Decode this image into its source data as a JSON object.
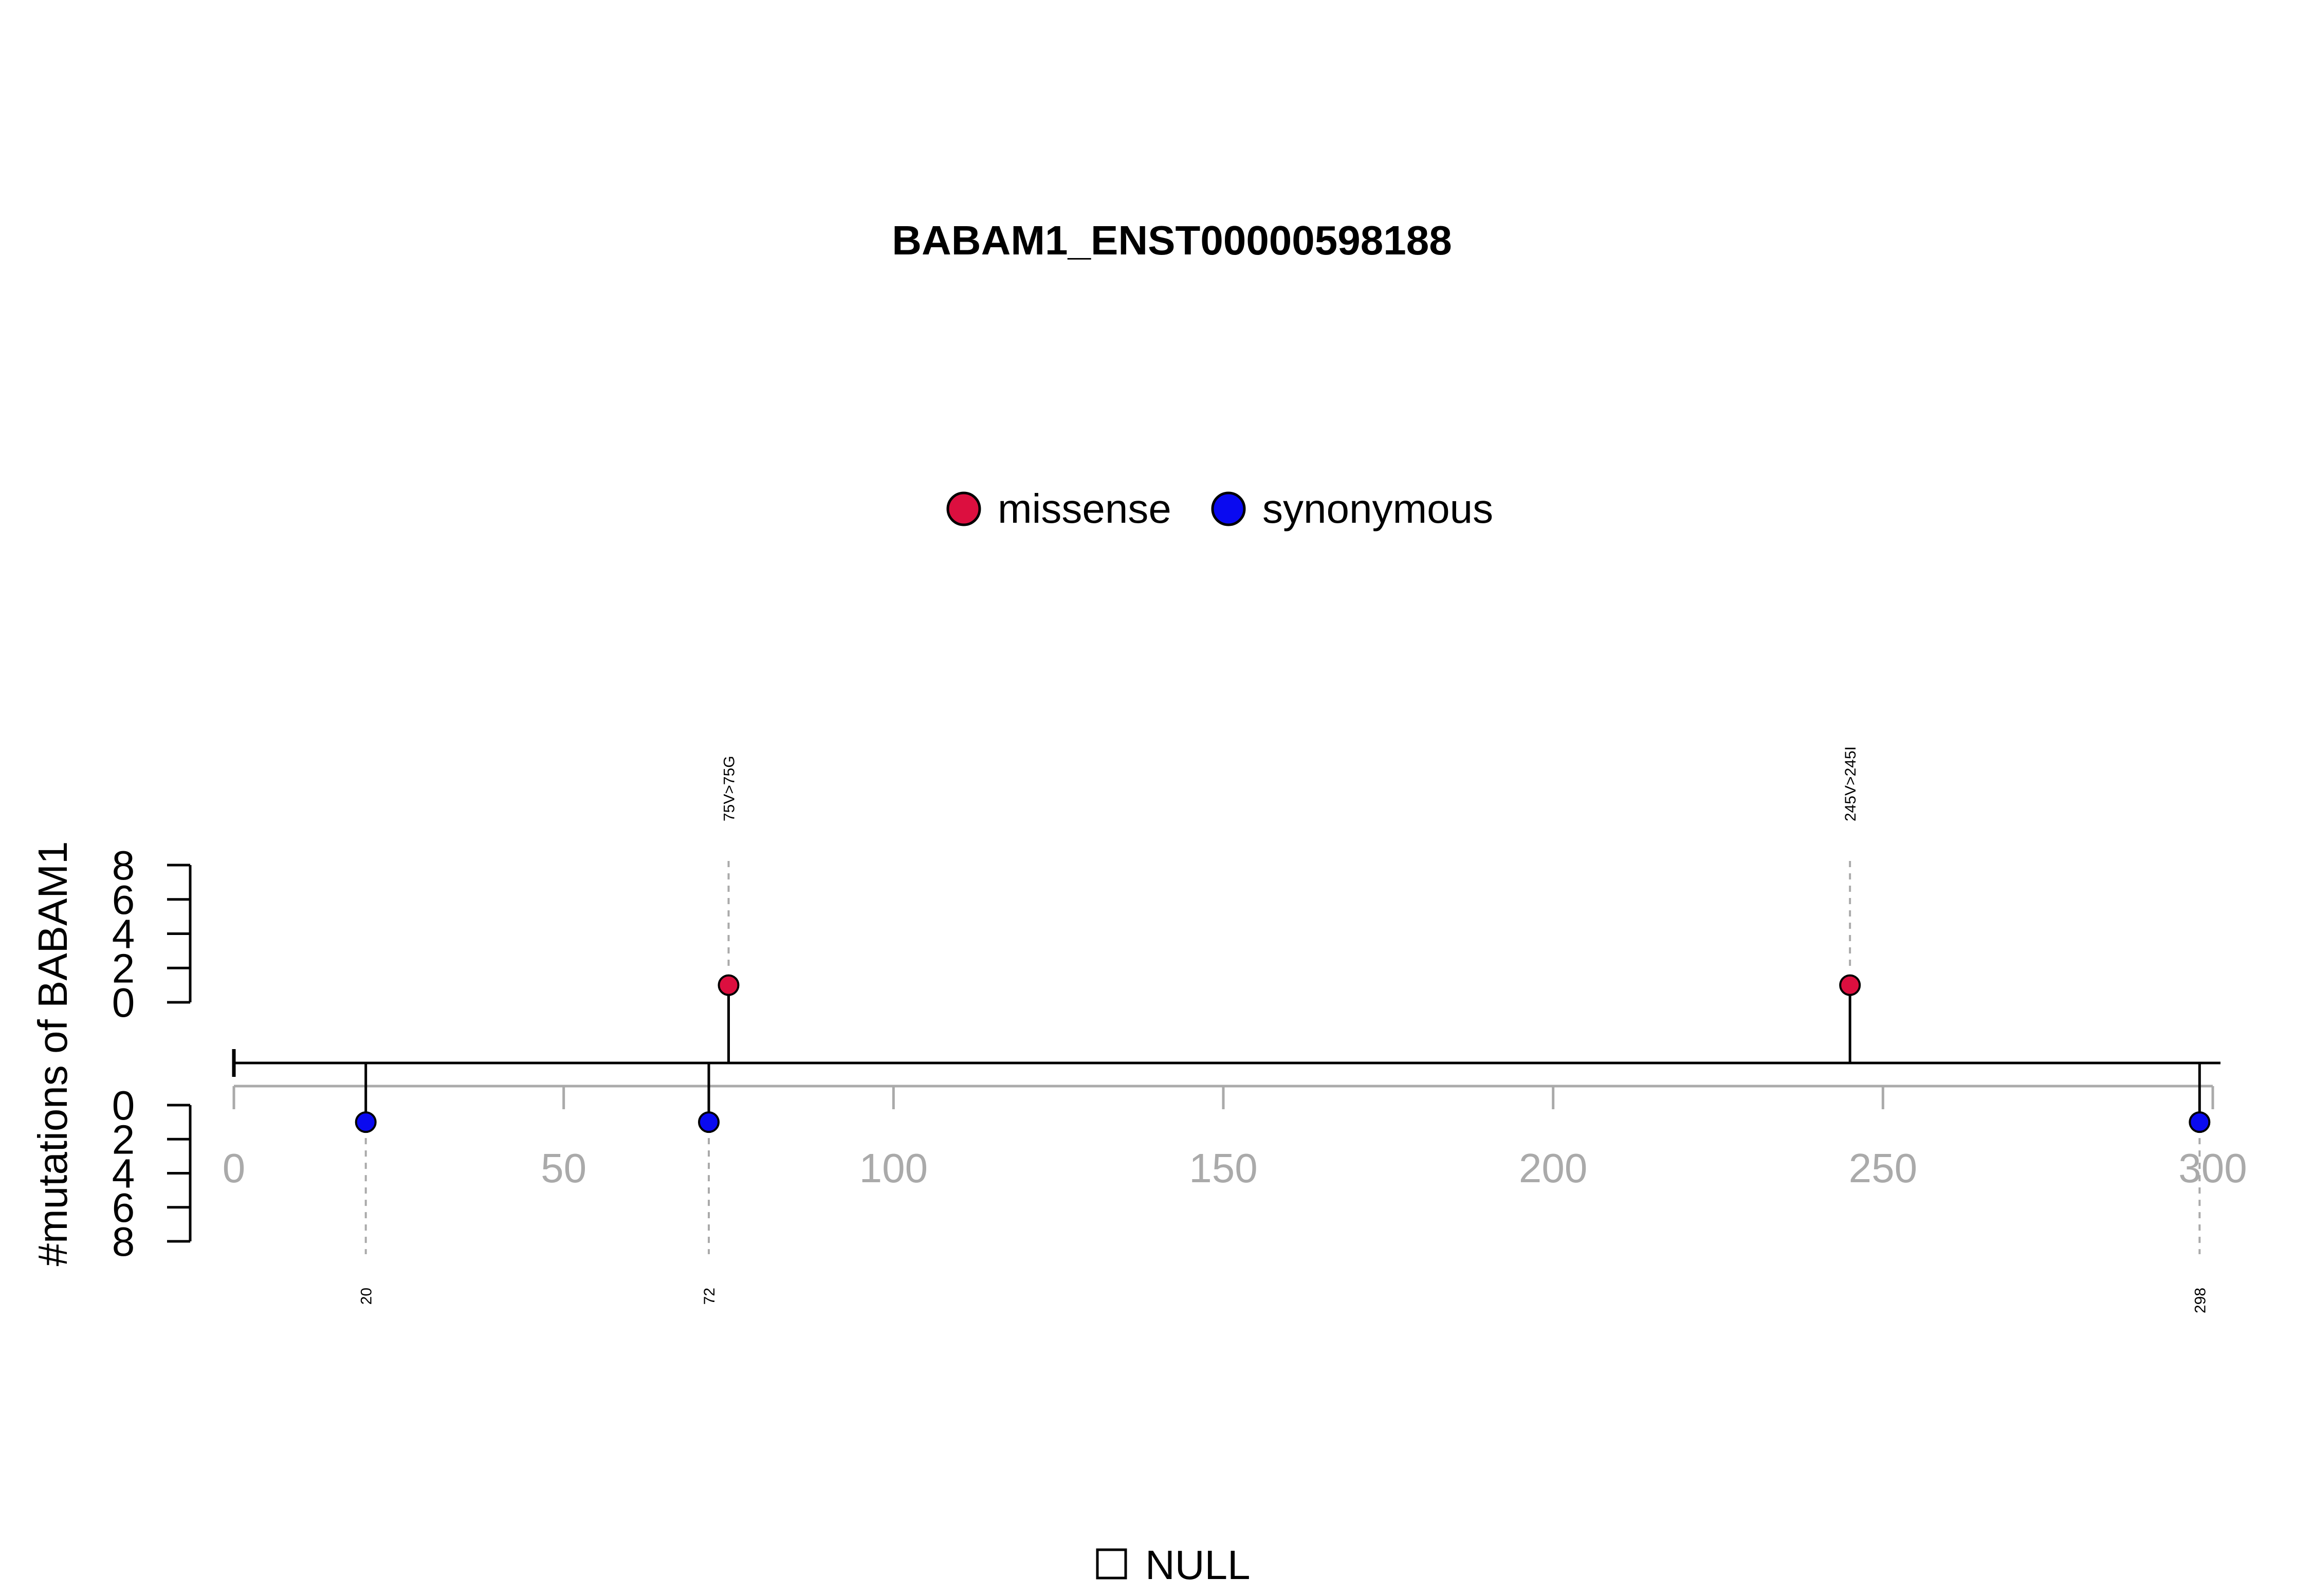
{
  "chart_data": {
    "type": "lollipop",
    "title": "BABAM1_ENST00000598188",
    "ylabel": "#mutations of BABAM1",
    "xlim": [
      0,
      300
    ],
    "x_ticks": [
      "0",
      "50",
      "100",
      "150",
      "200",
      "250",
      "300"
    ],
    "upper_y_ticks": [
      "0",
      "2",
      "4",
      "6",
      "8"
    ],
    "lower_y_ticks": [
      "0",
      "2",
      "4",
      "6",
      "8"
    ],
    "ylim": [
      0,
      8
    ],
    "legend": {
      "placement": "top-center",
      "entries": [
        {
          "name": "missense",
          "color": "#DC0F3F"
        },
        {
          "name": "synonymous",
          "color": "#0A0AF0"
        }
      ]
    },
    "series": [
      {
        "name": "missense",
        "side": "upper",
        "color": "#DC0F3F",
        "points": [
          {
            "x": 75,
            "count": 1,
            "label": "75V>75G"
          },
          {
            "x": 245,
            "count": 1,
            "label": "245V>245I"
          }
        ]
      },
      {
        "name": "synonymous",
        "side": "lower",
        "color": "#0A0AF0",
        "points": [
          {
            "x": 20,
            "count": 1,
            "label": "20"
          },
          {
            "x": 72,
            "count": 1,
            "label": "72"
          },
          {
            "x": 298,
            "count": 1,
            "label": "298"
          }
        ]
      }
    ],
    "domain_legend": {
      "label": "NULL"
    }
  }
}
